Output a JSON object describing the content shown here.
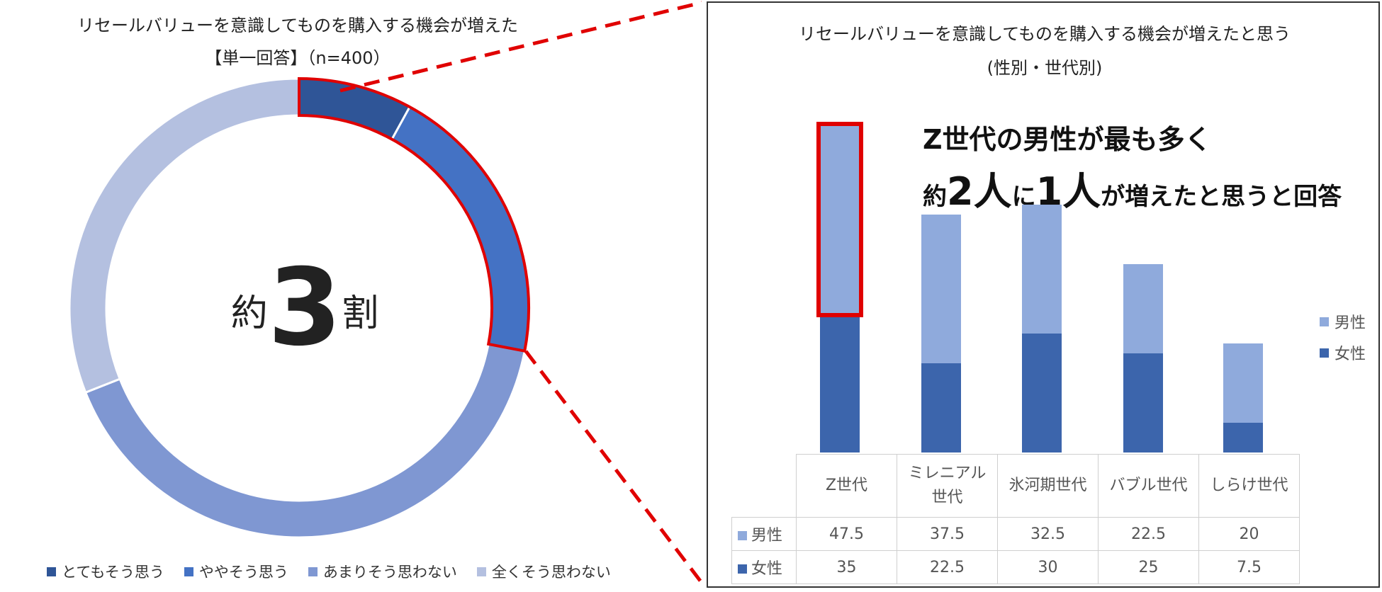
{
  "left_chart": {
    "title_line1": "リセールバリューを意識してものを購入する機会が増えた",
    "title_line2": "【単一回答】（n=400）",
    "center_prefix": "約",
    "center_number": "3",
    "center_suffix": "割",
    "colors": [
      "#2f5597",
      "#4472c4",
      "#7f97d2",
      "#b4c0e0"
    ]
  },
  "right_chart": {
    "title_line1": "リセールバリューを意識してものを購入する機会が増えたと思う",
    "title_line2": "(性別・世代別)",
    "headline_line1": "Z世代の男性が最も多く",
    "headline_line2": {
      "a": "約",
      "b": "2人",
      "c": "に",
      "d": "1人",
      "e": "が増えたと思うと回答"
    },
    "colors": {
      "male": "#8faadc",
      "female": "#3c65ac",
      "highlight": "#e00000"
    }
  },
  "chart_data": [
    {
      "type": "pie",
      "categories": [
        "とてもそう思う",
        "ややそう思う",
        "あまりそう思わない",
        "全くそう思わない"
      ],
      "values": [
        8,
        20,
        41,
        31
      ]
    },
    {
      "type": "bar",
      "stacked": true,
      "categories": [
        "Z世代",
        "ミレニアル世代",
        "氷河期世代",
        "バブル世代",
        "しらけ世代"
      ],
      "category_labels": [
        [
          "Z世代"
        ],
        [
          "ミレニアル",
          "世代"
        ],
        [
          "氷河期世代"
        ],
        [
          "バブル世代"
        ],
        [
          "しらけ世代"
        ]
      ],
      "series": [
        {
          "name": "女性",
          "values": [
            35,
            22.5,
            30,
            25,
            7.5
          ]
        },
        {
          "name": "男性",
          "values": [
            47.5,
            37.5,
            32.5,
            22.5,
            20
          ]
        }
      ],
      "value_labels": {
        "男性": [
          "47.5",
          "37.5",
          "32.5",
          "22.5",
          "20"
        ],
        "女性": [
          "35",
          "22.5",
          "30",
          "25",
          "7.5"
        ]
      },
      "legend_position": "right",
      "data_table": true
    }
  ]
}
